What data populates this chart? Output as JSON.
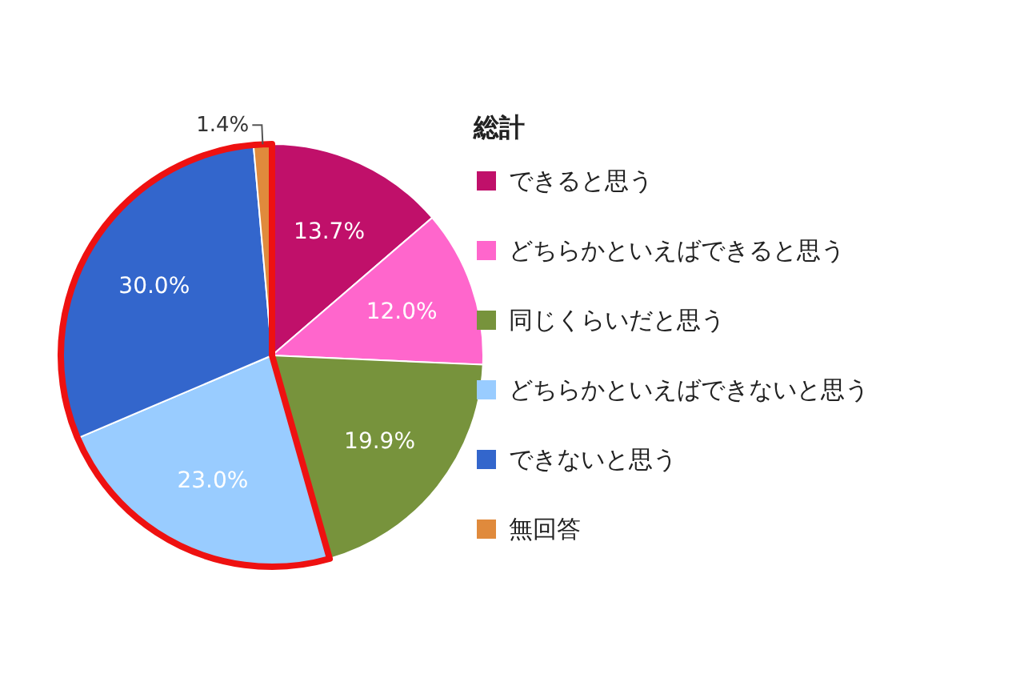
{
  "chart_data": {
    "type": "pie",
    "legend_title": "総計",
    "legend": "right",
    "categories": [
      "できると思う",
      "どちらかといえばできると思う",
      "同じくらいだと思う",
      "どちらかといえばできないと思う",
      "できないと思う",
      "無回答"
    ],
    "values": [
      13.7,
      12.0,
      19.9,
      23.0,
      30.0,
      1.4
    ],
    "value_labels": [
      "13.7%",
      "12.0%",
      "19.9%",
      "23.0%",
      "30.0%",
      "1.4%"
    ],
    "colors": [
      "#c0106a",
      "#ff66cc",
      "#77933c",
      "#99ccff",
      "#3366cc",
      "#e08a3c"
    ]
  }
}
